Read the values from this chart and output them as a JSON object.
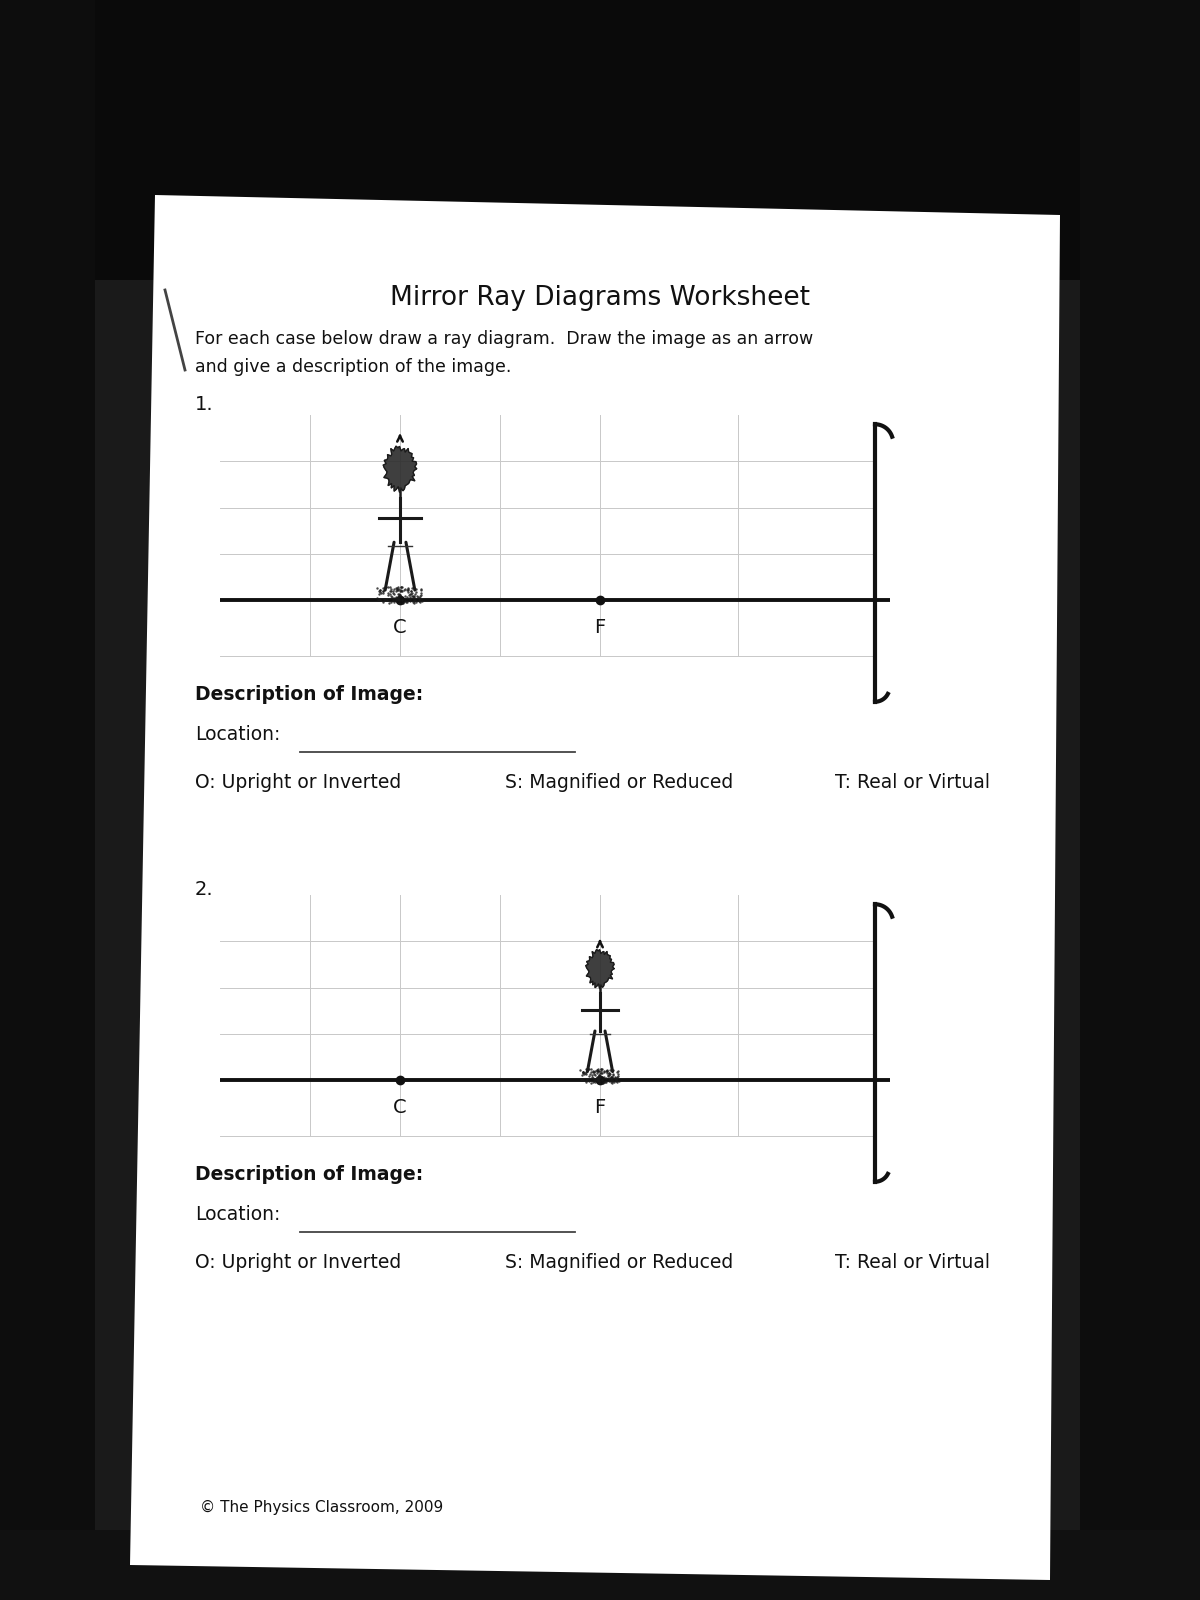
{
  "title": "Mirror Ray Diagrams Worksheet",
  "subtitle_line1": "For each case below draw a ray diagram.  Draw the image as an arrow",
  "subtitle_line2": "and give a description of the image.",
  "bg_color": "#1a1a1a",
  "paper_color": "#f0eeea",
  "text_color": "#111111",
  "dark_bg_top": "#0d0d0d",
  "diagram1": {
    "number": "1.",
    "C_label": "C",
    "F_label": "F",
    "desc_label": "Description of Image:",
    "loc_label": "Location:",
    "o_label": "O: Upright or Inverted",
    "s_label": "S: Magnified or Reduced",
    "t_label": "T: Real or Virtual"
  },
  "diagram2": {
    "number": "2.",
    "C_label": "C",
    "F_label": "F",
    "desc_label": "Description of Image:",
    "loc_label": "Location:",
    "o_label": "O: Upright or Inverted",
    "s_label": "S: Magnified or Reduced",
    "t_label": "T: Real or Virtual"
  },
  "footer": "© The Physics Classroom, 2009"
}
